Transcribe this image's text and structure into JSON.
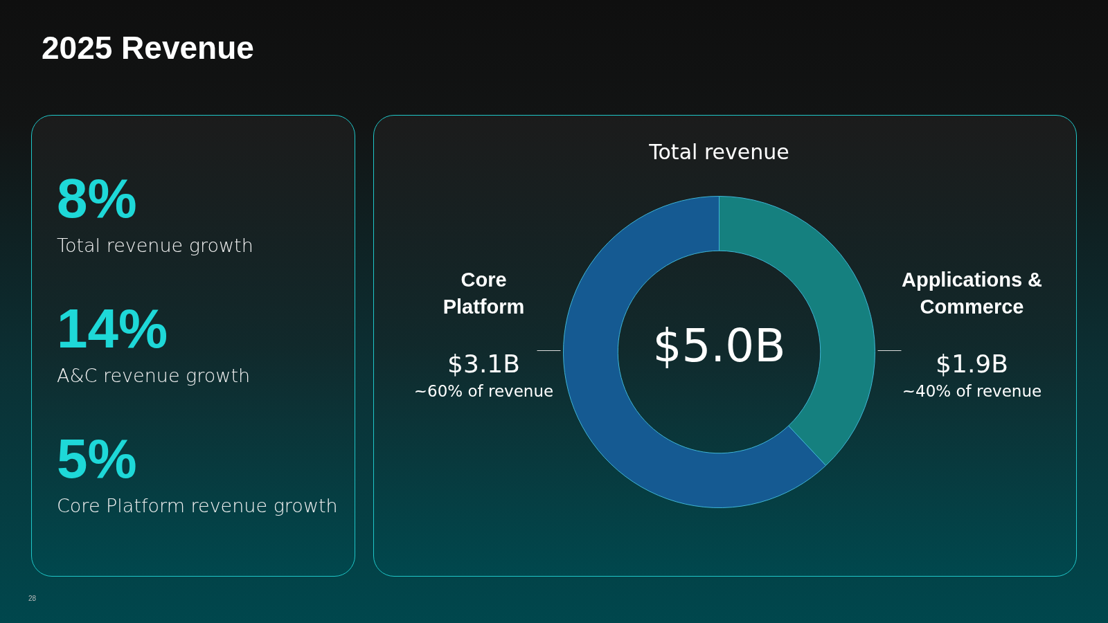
{
  "chart_data": [
    {
      "type": "other",
      "title": "2025 Revenue",
      "annotations": [
        "8%",
        "Total revenue growth",
        "14%",
        "A&C revenue growth",
        "5%",
        "Core Platform revenue growth",
        "28"
      ]
    },
    {
      "type": "donut",
      "title": "Total revenue",
      "categories": [
        "Applications & Commerce",
        "Core Platform"
      ],
      "values": [
        1.9,
        3.1
      ],
      "colors": [
        "#15807f",
        "#155a92"
      ],
      "value_labels": [
        "$1.9B",
        "$3.1B"
      ],
      "annotations": [
        "$5.0B",
        "~40% of revenue",
        "~60% of revenue"
      ],
      "legend": false
    }
  ]
}
